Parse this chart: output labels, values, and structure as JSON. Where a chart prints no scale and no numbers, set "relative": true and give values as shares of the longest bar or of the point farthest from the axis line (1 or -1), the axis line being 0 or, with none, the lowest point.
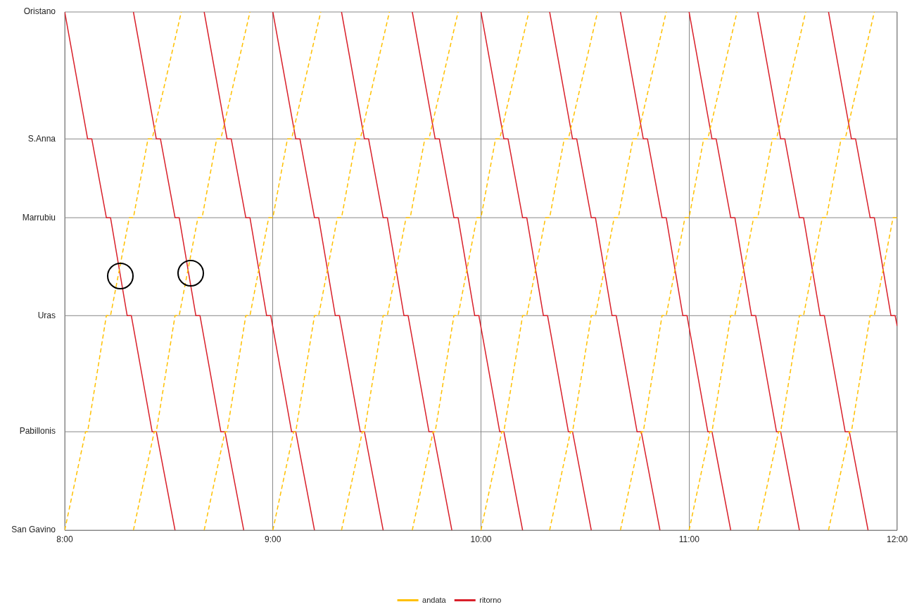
{
  "chart_data": {
    "type": "line",
    "legend": "bottom",
    "grid": "x",
    "marker": "none",
    "relative": true,
    "xlim": [
      8,
      12
    ],
    "xticks": [
      {
        "value": 8,
        "label": "8:00"
      },
      {
        "value": 9,
        "label": "9:00"
      },
      {
        "value": 10,
        "label": "10:00"
      },
      {
        "value": 11,
        "label": "11:00"
      },
      {
        "value": 12,
        "label": "12:00"
      }
    ],
    "annotations": [
      "San Gavino",
      "Oristano"
    ],
    "ref_lines": [
      {
        "axis": "y",
        "value": 0.19,
        "label": "Pabillonis",
        "color": "#888888"
      },
      {
        "axis": "y",
        "value": 0.414,
        "label": "Uras",
        "color": "#888888"
      },
      {
        "axis": "y",
        "value": 0.603,
        "label": "Marrubiu",
        "color": "#888888"
      },
      {
        "axis": "y",
        "value": 0.755,
        "label": "S.Anna",
        "color": "#888888"
      }
    ],
    "series": [
      {
        "name": "andata",
        "color": "#ffc000",
        "line_style": "dashed",
        "x": [
          8,
          8.1,
          8.11,
          8.2,
          8.22,
          8.31,
          8.33,
          8.4,
          8.42,
          8.56,
          null,
          8.33,
          8.43,
          8.44,
          8.53,
          8.55,
          8.64,
          8.66,
          8.73,
          8.75,
          8.89,
          null,
          8.67,
          8.77,
          8.78,
          8.87,
          8.89,
          8.98,
          9,
          9.07,
          9.09,
          9.23,
          null,
          9,
          9.1,
          9.11,
          9.2,
          9.22,
          9.31,
          9.33,
          9.4,
          9.42,
          9.56,
          null,
          9.33,
          9.43,
          9.44,
          9.53,
          9.55,
          9.64,
          9.66,
          9.73,
          9.75,
          9.89,
          null,
          9.67,
          9.77,
          9.78,
          9.87,
          9.89,
          9.98,
          10,
          10.07,
          10.09,
          10.23,
          null,
          10,
          10.1,
          10.11,
          10.2,
          10.22,
          10.31,
          10.33,
          10.4,
          10.42,
          10.56,
          null,
          10.33,
          10.43,
          10.44,
          10.53,
          10.55,
          10.64,
          10.66,
          10.73,
          10.75,
          10.89,
          null,
          10.67,
          10.77,
          10.78,
          10.87,
          10.89,
          10.98,
          11,
          11.07,
          11.09,
          11.23,
          null,
          11,
          11.1,
          11.11,
          11.2,
          11.22,
          11.31,
          11.33,
          11.4,
          11.42,
          11.56,
          null,
          11.33,
          11.43,
          11.44,
          11.53,
          11.55,
          11.64,
          11.66,
          11.73,
          11.75,
          11.89,
          null,
          11.67,
          11.77,
          11.78,
          11.87,
          11.89,
          11.98,
          12
        ],
        "values": [
          0,
          0.19,
          0.19,
          0.414,
          0.414,
          0.603,
          0.603,
          0.755,
          0.755,
          1,
          null,
          0,
          0.19,
          0.19,
          0.414,
          0.414,
          0.603,
          0.603,
          0.755,
          0.755,
          1,
          null,
          0,
          0.19,
          0.19,
          0.414,
          0.414,
          0.603,
          0.603,
          0.755,
          0.755,
          1,
          null,
          0,
          0.19,
          0.19,
          0.414,
          0.414,
          0.603,
          0.603,
          0.755,
          0.755,
          1,
          null,
          0,
          0.19,
          0.19,
          0.414,
          0.414,
          0.603,
          0.603,
          0.755,
          0.755,
          1,
          null,
          0,
          0.19,
          0.19,
          0.414,
          0.414,
          0.603,
          0.603,
          0.755,
          0.755,
          1,
          null,
          0,
          0.19,
          0.19,
          0.414,
          0.414,
          0.603,
          0.603,
          0.755,
          0.755,
          1,
          null,
          0,
          0.19,
          0.19,
          0.414,
          0.414,
          0.603,
          0.603,
          0.755,
          0.755,
          1,
          null,
          0,
          0.19,
          0.19,
          0.414,
          0.414,
          0.603,
          0.603,
          0.755,
          0.755,
          1,
          null,
          0,
          0.19,
          0.19,
          0.414,
          0.414,
          0.603,
          0.603,
          0.755,
          0.755,
          1,
          null,
          0,
          0.19,
          0.19,
          0.414,
          0.414,
          0.603,
          0.603,
          0.755,
          0.755,
          1,
          null,
          0,
          0.19,
          0.19,
          0.414,
          0.414,
          0.603,
          0.603
        ]
      },
      {
        "name": "ritorno",
        "color": "#d9202a",
        "line_style": "solid",
        "x": [
          8,
          8.11,
          8.13,
          8.2,
          8.22,
          8.3,
          8.32,
          8.42,
          8.44,
          8.53,
          null,
          8.33,
          8.44,
          8.46,
          8.53,
          8.55,
          8.63,
          8.65,
          8.75,
          8.77,
          8.86,
          null,
          8.67,
          8.78,
          8.8,
          8.87,
          8.89,
          8.97,
          8.99,
          9.09,
          9.11,
          9.2,
          null,
          9,
          9.11,
          9.13,
          9.2,
          9.22,
          9.3,
          9.32,
          9.42,
          9.44,
          9.53,
          null,
          9.33,
          9.44,
          9.46,
          9.53,
          9.55,
          9.63,
          9.65,
          9.75,
          9.77,
          9.86,
          null,
          9.67,
          9.78,
          9.8,
          9.87,
          9.89,
          9.97,
          9.99,
          10.09,
          10.11,
          10.2,
          null,
          10,
          10.11,
          10.13,
          10.2,
          10.22,
          10.3,
          10.32,
          10.42,
          10.44,
          10.53,
          null,
          10.33,
          10.44,
          10.46,
          10.53,
          10.55,
          10.63,
          10.65,
          10.75,
          10.77,
          10.86,
          null,
          10.67,
          10.78,
          10.8,
          10.87,
          10.89,
          10.97,
          10.99,
          11.09,
          11.11,
          11.2,
          null,
          11,
          11.11,
          11.13,
          11.2,
          11.22,
          11.3,
          11.32,
          11.42,
          11.44,
          11.53,
          null,
          11.33,
          11.44,
          11.46,
          11.53,
          11.55,
          11.63,
          11.65,
          11.75,
          11.77,
          11.86,
          null,
          11.67,
          11.78,
          11.8,
          11.87,
          11.89,
          11.97,
          11.99,
          12
        ],
        "values": [
          1,
          0.755,
          0.755,
          0.603,
          0.603,
          0.414,
          0.414,
          0.19,
          0.19,
          0,
          null,
          1,
          0.755,
          0.755,
          0.603,
          0.603,
          0.414,
          0.414,
          0.19,
          0.19,
          0,
          null,
          1,
          0.755,
          0.755,
          0.603,
          0.603,
          0.414,
          0.414,
          0.19,
          0.19,
          0,
          null,
          1,
          0.755,
          0.755,
          0.603,
          0.603,
          0.414,
          0.414,
          0.19,
          0.19,
          0,
          null,
          1,
          0.755,
          0.755,
          0.603,
          0.603,
          0.414,
          0.414,
          0.19,
          0.19,
          0,
          null,
          1,
          0.755,
          0.755,
          0.603,
          0.603,
          0.414,
          0.414,
          0.19,
          0.19,
          0,
          null,
          1,
          0.755,
          0.755,
          0.603,
          0.603,
          0.414,
          0.414,
          0.19,
          0.19,
          0,
          null,
          1,
          0.755,
          0.755,
          0.603,
          0.603,
          0.414,
          0.414,
          0.19,
          0.19,
          0,
          null,
          1,
          0.755,
          0.755,
          0.603,
          0.603,
          0.414,
          0.414,
          0.19,
          0.19,
          0,
          null,
          1,
          0.755,
          0.755,
          0.603,
          0.603,
          0.414,
          0.414,
          0.19,
          0.19,
          0,
          null,
          1,
          0.755,
          0.755,
          0.603,
          0.603,
          0.414,
          0.414,
          0.19,
          0.19,
          0,
          null,
          1,
          0.755,
          0.755,
          0.603,
          0.603,
          0.414,
          0.414,
          0.394
        ]
      }
    ]
  }
}
